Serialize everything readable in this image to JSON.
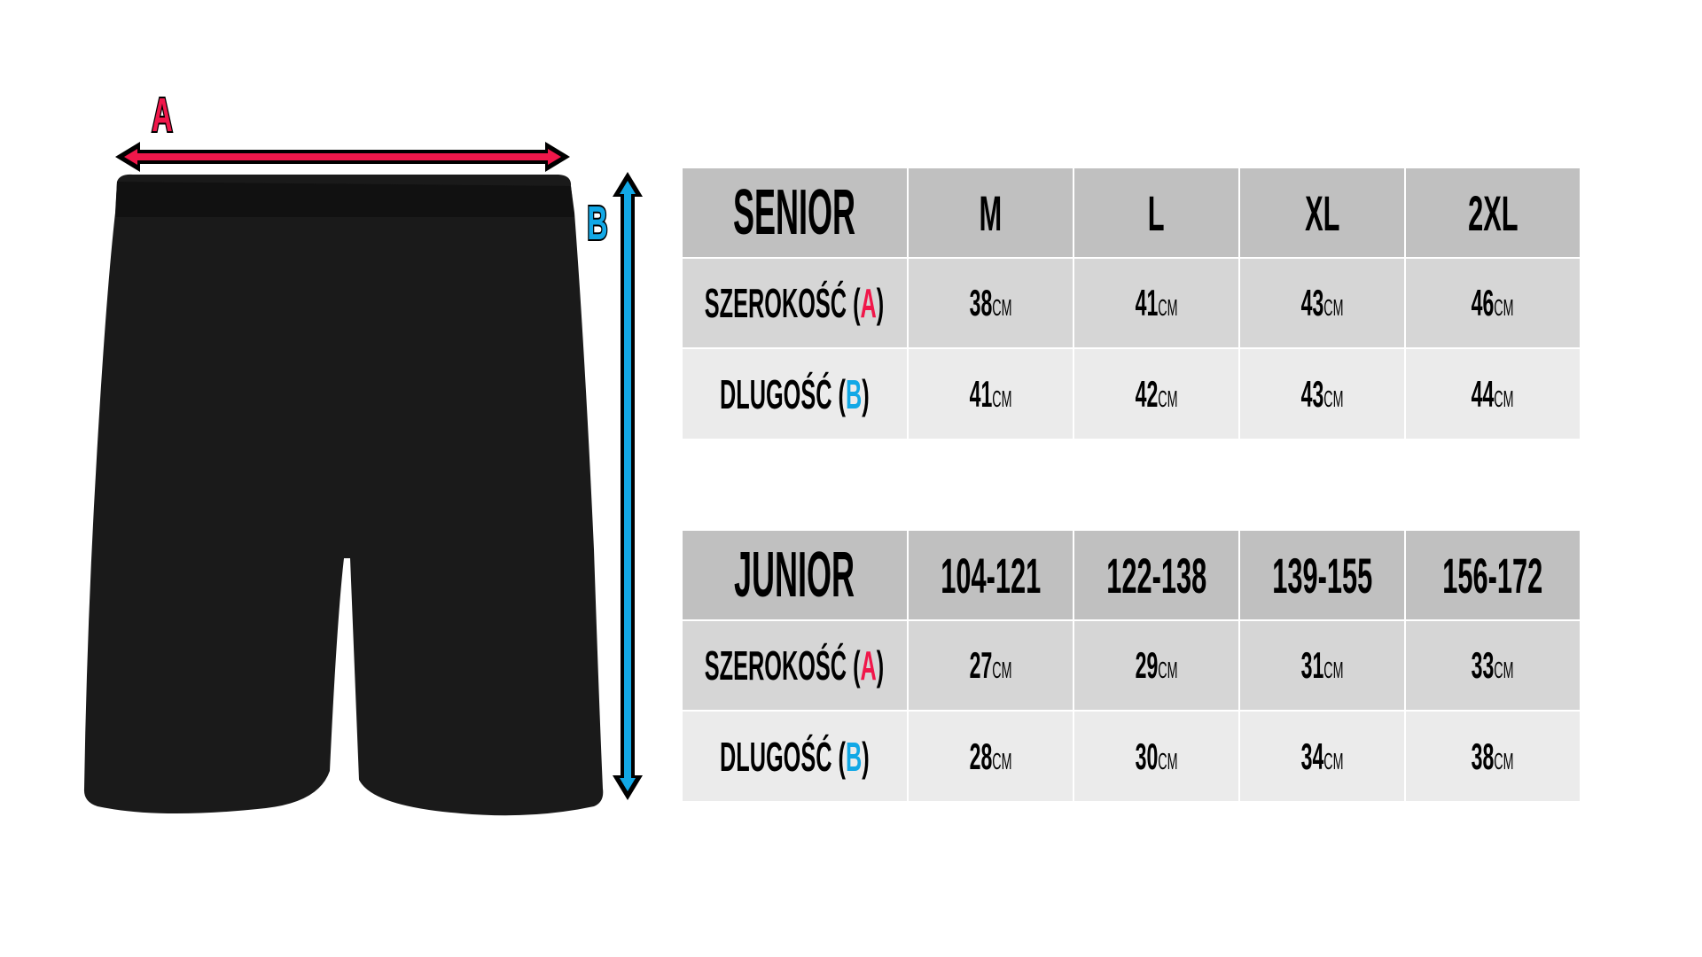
{
  "diagram": {
    "label_a": "A",
    "label_b": "B",
    "color_a": "#f0174a",
    "color_b": "#12a8e6",
    "garment": "black shorts"
  },
  "unit": "CM",
  "tables": [
    {
      "title": "SENIOR",
      "sizes": [
        "M",
        "L",
        "XL",
        "2XL"
      ],
      "rows": [
        {
          "label": "SZEROKOŚĆ",
          "measure": "A",
          "values": [
            "38",
            "41",
            "43",
            "46"
          ]
        },
        {
          "label": "DLUGOŚĆ",
          "measure": "B",
          "values": [
            "41",
            "42",
            "43",
            "44"
          ]
        }
      ]
    },
    {
      "title": "JUNIOR",
      "sizes": [
        "104-121",
        "122-138",
        "139-155",
        "156-172"
      ],
      "rows": [
        {
          "label": "SZEROKOŚĆ",
          "measure": "A",
          "values": [
            "27",
            "29",
            "31",
            "33"
          ]
        },
        {
          "label": "DLUGOŚĆ",
          "measure": "B",
          "values": [
            "28",
            "30",
            "34",
            "38"
          ]
        }
      ]
    }
  ]
}
